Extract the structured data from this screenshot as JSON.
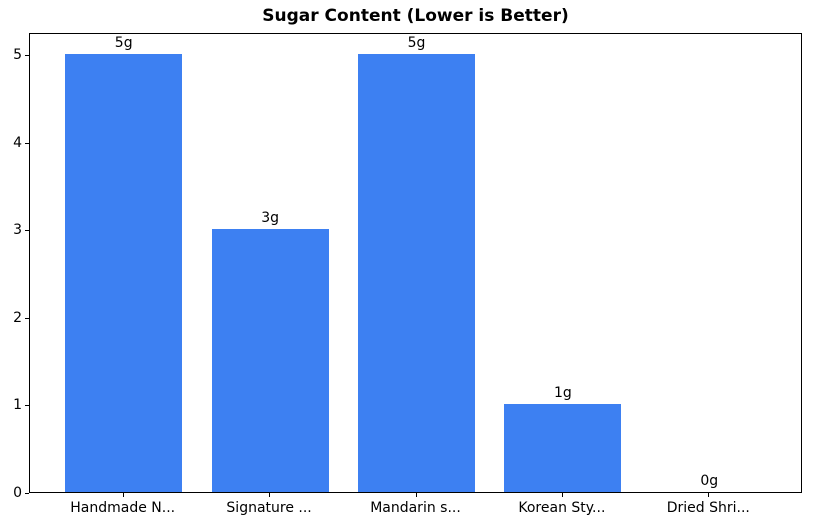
{
  "chart_data": {
    "type": "bar",
    "title": "Sugar Content (Lower is Better)",
    "categories": [
      "Handmade N...",
      "Signature ...",
      "Mandarin s...",
      "Korean Sty...",
      "Dried Shri..."
    ],
    "values": [
      5,
      3,
      5,
      1,
      0
    ],
    "value_labels": [
      "5g",
      "3g",
      "5g",
      "1g",
      "0g"
    ],
    "xlabel": "",
    "ylabel": "",
    "yticks": [
      0,
      1,
      2,
      3,
      4,
      5
    ],
    "ylim": [
      0,
      5.25
    ],
    "grid": false,
    "legend": "none",
    "bar_color": "#3d80f2",
    "axis_color": "#000000",
    "background_color": "#ffffff"
  }
}
